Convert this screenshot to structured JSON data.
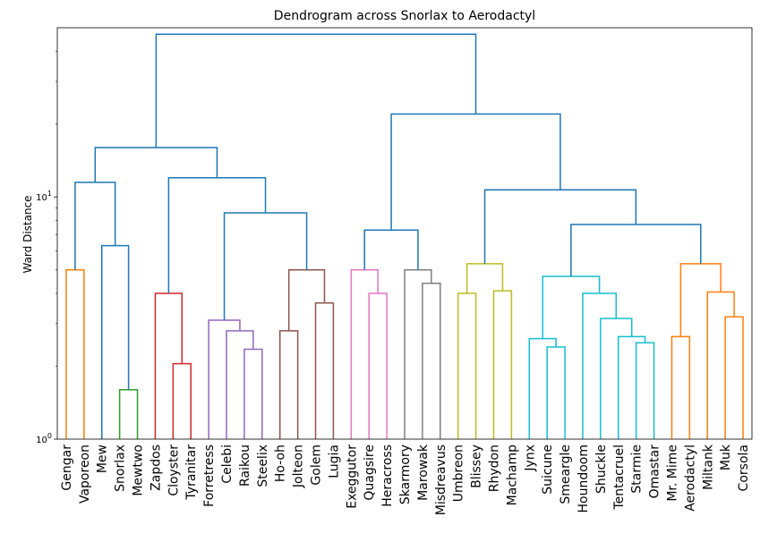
{
  "chart_data": {
    "type": "dendrogram",
    "title": "Dendrogram across Snorlax to Aerodactyl",
    "xlabel": "",
    "ylabel": "Ward Distance",
    "yscale": "log",
    "ylim": [
      1,
      50
    ],
    "y_tick_labels": [
      {
        "value": 1,
        "label": "10^0"
      },
      {
        "value": 10,
        "label": "10^1"
      }
    ],
    "leaves": [
      "Gengar",
      "Vaporeon",
      "Mew",
      "Snorlax",
      "Mewtwo",
      "Zapdos",
      "Cloyster",
      "Tyranitar",
      "Forretress",
      "Celebi",
      "Raikou",
      "Steelix",
      "Ho-oh",
      "Jolteon",
      "Golem",
      "Lugia",
      "Exeggutor",
      "Quagsire",
      "Heracross",
      "Skarmory",
      "Marowak",
      "Misdreavus",
      "Umbreon",
      "Blissey",
      "Rhydon",
      "Machamp",
      "Jynx",
      "Suicune",
      "Smeargle",
      "Houndoom",
      "Shuckle",
      "Tentacruel",
      "Starmie",
      "Omastar",
      "Mr. Mime",
      "Aerodactyl",
      "Miltank",
      "Muk",
      "Corsola"
    ],
    "merges": [
      {
        "id": "Z1",
        "left": "Gengar",
        "right": "Vaporeon",
        "height": 5.0,
        "color": "#ff7f0e"
      },
      {
        "id": "Z2",
        "left": "Snorlax",
        "right": "Mewtwo",
        "height": 1.6,
        "color": "#2ca02c"
      },
      {
        "id": "Z3",
        "left": "Mew",
        "right": "Z2",
        "height": 6.3,
        "color": "#1f77b4"
      },
      {
        "id": "Z4",
        "left": "Z1",
        "right": "Z3",
        "height": 11.5,
        "color": "#1f77b4"
      },
      {
        "id": "Z5",
        "left": "Cloyster",
        "right": "Tyranitar",
        "height": 2.05,
        "color": "#d62728"
      },
      {
        "id": "Z6",
        "left": "Zapdos",
        "right": "Z5",
        "height": 4.0,
        "color": "#d62728"
      },
      {
        "id": "Z7",
        "left": "Raikou",
        "right": "Steelix",
        "height": 2.35,
        "color": "#9467bd"
      },
      {
        "id": "Z8",
        "left": "Celebi",
        "right": "Z7",
        "height": 2.8,
        "color": "#9467bd"
      },
      {
        "id": "Z9",
        "left": "Forretress",
        "right": "Z8",
        "height": 3.1,
        "color": "#9467bd"
      },
      {
        "id": "Z10",
        "left": "Ho-oh",
        "right": "Jolteon",
        "height": 2.8,
        "color": "#8c564b"
      },
      {
        "id": "Z11",
        "left": "Golem",
        "right": "Lugia",
        "height": 3.65,
        "color": "#8c564b"
      },
      {
        "id": "Z12",
        "left": "Z10",
        "right": "Z11",
        "height": 5.0,
        "color": "#8c564b"
      },
      {
        "id": "Z13",
        "left": "Z9",
        "right": "Z12",
        "height": 8.6,
        "color": "#1f77b4"
      },
      {
        "id": "Z14",
        "left": "Z6",
        "right": "Z13",
        "height": 12.0,
        "color": "#1f77b4"
      },
      {
        "id": "Z15",
        "left": "Z4",
        "right": "Z14",
        "height": 16.0,
        "color": "#1f77b4"
      },
      {
        "id": "Z16",
        "left": "Quagsire",
        "right": "Heracross",
        "height": 4.0,
        "color": "#e377c2"
      },
      {
        "id": "Z17",
        "left": "Exeggutor",
        "right": "Z16",
        "height": 5.0,
        "color": "#e377c2"
      },
      {
        "id": "Z18",
        "left": "Marowak",
        "right": "Misdreavus",
        "height": 4.4,
        "color": "#7f7f7f"
      },
      {
        "id": "Z19",
        "left": "Skarmory",
        "right": "Z18",
        "height": 5.0,
        "color": "#7f7f7f"
      },
      {
        "id": "Z20",
        "left": "Z17",
        "right": "Z19",
        "height": 7.3,
        "color": "#1f77b4"
      },
      {
        "id": "Z21",
        "left": "Umbreon",
        "right": "Blissey",
        "height": 4.0,
        "color": "#bcbd22"
      },
      {
        "id": "Z22",
        "left": "Rhydon",
        "right": "Machamp",
        "height": 4.1,
        "color": "#bcbd22"
      },
      {
        "id": "Z23",
        "left": "Z21",
        "right": "Z22",
        "height": 5.3,
        "color": "#bcbd22"
      },
      {
        "id": "Z24",
        "left": "Suicune",
        "right": "Smeargle",
        "height": 2.4,
        "color": "#17becf"
      },
      {
        "id": "Z25",
        "left": "Jynx",
        "right": "Z24",
        "height": 2.6,
        "color": "#17becf"
      },
      {
        "id": "Z26",
        "left": "Starmie",
        "right": "Omastar",
        "height": 2.5,
        "color": "#17becf"
      },
      {
        "id": "Z27",
        "left": "Tentacruel",
        "right": "Z26",
        "height": 2.65,
        "color": "#17becf"
      },
      {
        "id": "Z28",
        "left": "Shuckle",
        "right": "Z27",
        "height": 3.15,
        "color": "#17becf"
      },
      {
        "id": "Z29",
        "left": "Houndoom",
        "right": "Z28",
        "height": 4.0,
        "color": "#17becf"
      },
      {
        "id": "Z30",
        "left": "Z25",
        "right": "Z29",
        "height": 4.7,
        "color": "#17becf"
      },
      {
        "id": "Z31",
        "left": "Mr. Mime",
        "right": "Aerodactyl",
        "height": 2.65,
        "color": "#ff7f0e"
      },
      {
        "id": "Z32",
        "left": "Muk",
        "right": "Corsola",
        "height": 3.2,
        "color": "#ff7f0e"
      },
      {
        "id": "Z33",
        "left": "Miltank",
        "right": "Z32",
        "height": 4.05,
        "color": "#ff7f0e"
      },
      {
        "id": "Z34",
        "left": "Z31",
        "right": "Z33",
        "height": 5.3,
        "color": "#ff7f0e"
      },
      {
        "id": "Z35",
        "left": "Z30",
        "right": "Z34",
        "height": 7.7,
        "color": "#1f77b4"
      },
      {
        "id": "Z36",
        "left": "Z23",
        "right": "Z35",
        "height": 10.7,
        "color": "#1f77b4"
      },
      {
        "id": "Z37",
        "left": "Z20",
        "right": "Z36",
        "height": 22.0,
        "color": "#1f77b4"
      },
      {
        "id": "Z38",
        "left": "Z15",
        "right": "Z37",
        "height": 47.0,
        "color": "#1f77b4"
      }
    ]
  }
}
